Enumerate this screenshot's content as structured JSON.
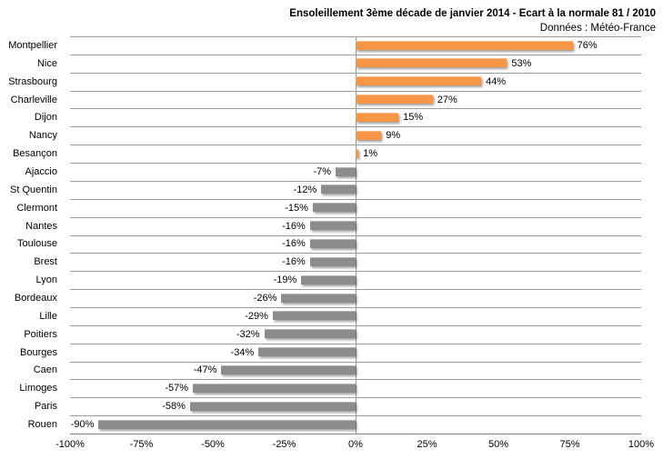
{
  "header": {
    "title": "Ensoleillement 3ème décade de janvier 2014 - Ecart à la normale 81 / 2010",
    "subtitle": "Données : Météo-France"
  },
  "chart_data": {
    "type": "bar",
    "orientation": "horizontal",
    "title": "Ensoleillement 3ème décade de janvier 2014 - Ecart à la normale 81 / 2010",
    "subtitle": "Données : Météo-France",
    "categories": [
      "Montpellier",
      "Nice",
      "Strasbourg",
      "Charleville",
      "Dijon",
      "Nancy",
      "Besançon",
      "Ajaccio",
      "St Quentin",
      "Clermont",
      "Nantes",
      "Toulouse",
      "Brest",
      "Lyon",
      "Bordeaux",
      "Lille",
      "Poitiers",
      "Bourges",
      "Caen",
      "Limoges",
      "Paris",
      "Rouen"
    ],
    "values": [
      76,
      53,
      44,
      27,
      15,
      9,
      1,
      -7,
      -12,
      -15,
      -16,
      -16,
      -16,
      -19,
      -26,
      -29,
      -32,
      -34,
      -47,
      -57,
      -58,
      -90
    ],
    "value_labels": [
      "76%",
      "53%",
      "44%",
      "27%",
      "15%",
      "9%",
      "1%",
      "-7%",
      "-12%",
      "-15%",
      "-16%",
      "-16%",
      "-16%",
      "-19%",
      "-26%",
      "-29%",
      "-32%",
      "-34%",
      "-47%",
      "-57%",
      "-58%",
      "-90%"
    ],
    "xlim": [
      -100,
      100
    ],
    "x_ticks": [
      "-100%",
      "-75%",
      "-50%",
      "-25%",
      "0%",
      "25%",
      "50%",
      "75%",
      "100%"
    ],
    "legend": "none",
    "grid": "category-row separators, zero axis line only",
    "colors": {
      "positive": "#F79646",
      "negative": "#8C8C8C",
      "gridline": "#9B9B9B",
      "axis": "#868686",
      "text": "#000000",
      "background": "#FFFFFF"
    }
  }
}
